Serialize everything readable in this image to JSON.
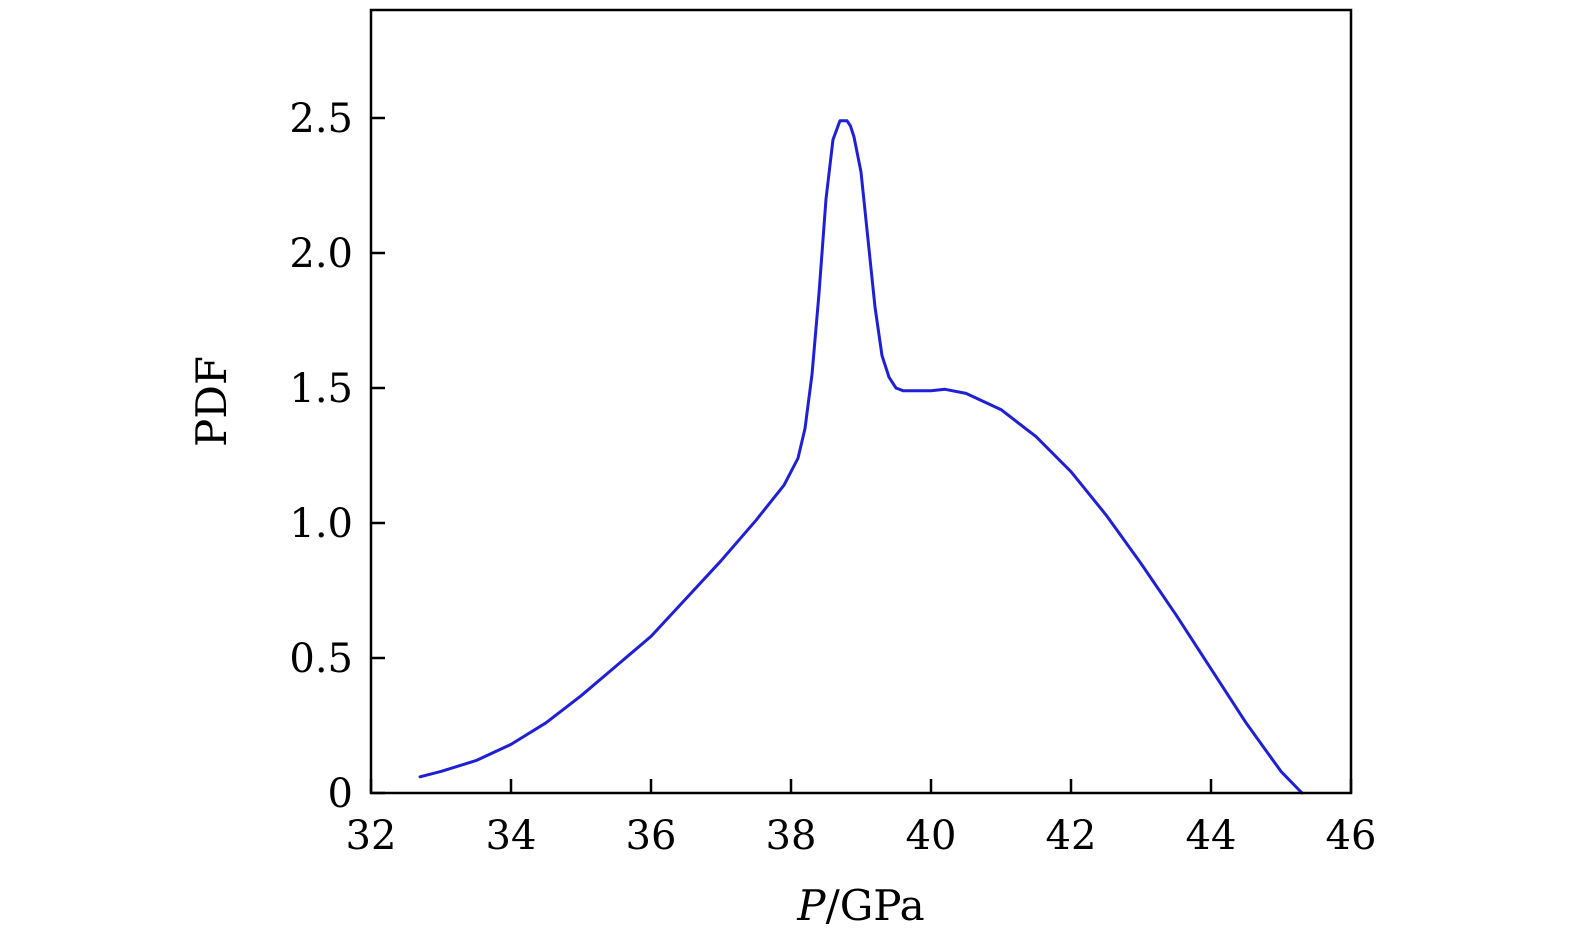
{
  "chart_data": {
    "type": "line",
    "title": "",
    "xlabel": {
      "var": "P",
      "unit": "/GPa"
    },
    "ylabel": "PDF",
    "xlim": [
      32,
      46
    ],
    "ylim": [
      0,
      2.9
    ],
    "xticks": [
      32,
      34,
      36,
      38,
      40,
      42,
      44,
      46
    ],
    "xtick_labels": [
      "32",
      "34",
      "36",
      "38",
      "40",
      "42",
      "44",
      "46"
    ],
    "yticks": [
      0,
      0.5,
      1.0,
      1.5,
      2.0,
      2.5
    ],
    "ytick_labels": [
      "0",
      "0.5",
      "1.0",
      "1.5",
      "2.0",
      "2.5"
    ],
    "grid": false,
    "legend": "none",
    "line_color": "#1f1fd6",
    "series": [
      {
        "x": [
          32.7,
          33.0,
          33.5,
          34.0,
          34.5,
          35.0,
          35.5,
          36.0,
          36.5,
          37.0,
          37.5,
          37.9,
          38.1,
          38.2,
          38.3,
          38.4,
          38.5,
          38.6,
          38.7,
          38.8,
          38.85,
          38.9,
          39.0,
          39.1,
          39.2,
          39.3,
          39.4,
          39.5,
          39.6,
          39.8,
          40.0,
          40.2,
          40.5,
          41.0,
          41.5,
          42.0,
          42.5,
          43.0,
          43.5,
          44.0,
          44.5,
          45.0,
          45.3
        ],
        "y": [
          0.06,
          0.08,
          0.12,
          0.18,
          0.26,
          0.36,
          0.47,
          0.58,
          0.72,
          0.86,
          1.01,
          1.14,
          1.24,
          1.35,
          1.55,
          1.85,
          2.2,
          2.42,
          2.49,
          2.49,
          2.47,
          2.43,
          2.3,
          2.05,
          1.8,
          1.62,
          1.54,
          1.5,
          1.49,
          1.49,
          1.49,
          1.495,
          1.48,
          1.42,
          1.32,
          1.19,
          1.03,
          0.85,
          0.66,
          0.46,
          0.26,
          0.08,
          0.0
        ]
      }
    ]
  }
}
